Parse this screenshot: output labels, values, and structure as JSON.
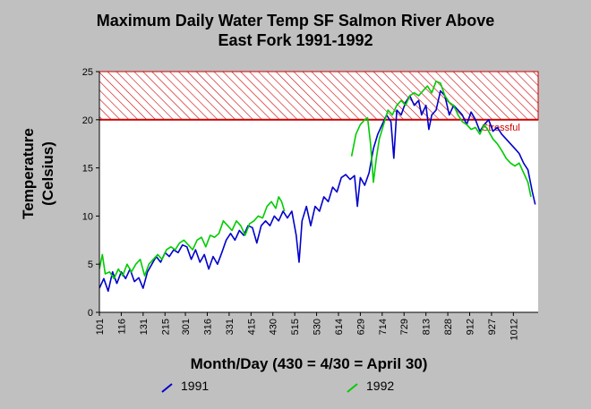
{
  "chart_data": {
    "type": "line",
    "title_line1": "Maximum Daily Water Temp SF Salmon River Above",
    "title_line2": "East Fork 1991-1992",
    "xlabel": "Month/Day (430 = 4/30 = April 30)",
    "ylabel_line1": "Temperature",
    "ylabel_line2": "(Celsius)",
    "ylim": [
      0,
      25
    ],
    "yticks": [
      0,
      5,
      10,
      15,
      20,
      25
    ],
    "x_tick_labels": [
      "101",
      "116",
      "131",
      "215",
      "301",
      "316",
      "331",
      "415",
      "430",
      "515",
      "530",
      "614",
      "629",
      "714",
      "729",
      "813",
      "828",
      "912",
      "927",
      "1012"
    ],
    "x_tick_days": [
      1,
      16,
      31,
      46,
      60,
      75,
      90,
      105,
      120,
      135,
      150,
      165,
      180,
      195,
      210,
      225,
      240,
      255,
      270,
      285
    ],
    "xlim": [
      1,
      302
    ],
    "threshold": {
      "label": "Stressful",
      "from": 20,
      "to": 25,
      "color": "#cc0000"
    },
    "series": [
      {
        "name": "1991",
        "color": "#0000cc",
        "points": [
          [
            1,
            2.5
          ],
          [
            4,
            3.5
          ],
          [
            7,
            2.2
          ],
          [
            10,
            4.2
          ],
          [
            13,
            3
          ],
          [
            16,
            4.2
          ],
          [
            19,
            3.5
          ],
          [
            22,
            4.5
          ],
          [
            25,
            3.2
          ],
          [
            28,
            3.6
          ],
          [
            31,
            2.5
          ],
          [
            34,
            4.2
          ],
          [
            37,
            5
          ],
          [
            40,
            5.8
          ],
          [
            43,
            5.2
          ],
          [
            46,
            6.2
          ],
          [
            49,
            5.8
          ],
          [
            52,
            6.5
          ],
          [
            55,
            6.2
          ],
          [
            58,
            7
          ],
          [
            61,
            6.8
          ],
          [
            64,
            5.5
          ],
          [
            67,
            6.5
          ],
          [
            70,
            5.2
          ],
          [
            73,
            6
          ],
          [
            76,
            4.5
          ],
          [
            79,
            5.8
          ],
          [
            82,
            5
          ],
          [
            85,
            6.2
          ],
          [
            88,
            7.5
          ],
          [
            91,
            8.2
          ],
          [
            94,
            7.5
          ],
          [
            97,
            8.5
          ],
          [
            100,
            8
          ],
          [
            103,
            9
          ],
          [
            106,
            8.8
          ],
          [
            109,
            7.2
          ],
          [
            112,
            9
          ],
          [
            115,
            9.5
          ],
          [
            118,
            9
          ],
          [
            121,
            10
          ],
          [
            124,
            9.5
          ],
          [
            127,
            10.5
          ],
          [
            130,
            9.8
          ],
          [
            133,
            10.5
          ],
          [
            136,
            8
          ],
          [
            138,
            5.2
          ],
          [
            140,
            9.5
          ],
          [
            143,
            11
          ],
          [
            146,
            9
          ],
          [
            149,
            11
          ],
          [
            152,
            10.5
          ],
          [
            155,
            12
          ],
          [
            158,
            11.5
          ],
          [
            161,
            13
          ],
          [
            164,
            12.5
          ],
          [
            167,
            14
          ],
          [
            170,
            14.3
          ],
          [
            173,
            13.8
          ],
          [
            176,
            14.2
          ],
          [
            178,
            11
          ],
          [
            180,
            14
          ],
          [
            183,
            13.2
          ],
          [
            186,
            14.5
          ],
          [
            189,
            17
          ],
          [
            192,
            18.5
          ],
          [
            195,
            19.5
          ],
          [
            198,
            20.5
          ],
          [
            201,
            19.8
          ],
          [
            203,
            16
          ],
          [
            205,
            21
          ],
          [
            208,
            20.5
          ],
          [
            211,
            21.8
          ],
          [
            214,
            22.5
          ],
          [
            217,
            21.5
          ],
          [
            220,
            22
          ],
          [
            222,
            20.5
          ],
          [
            225,
            21.5
          ],
          [
            227,
            19
          ],
          [
            229,
            20.5
          ],
          [
            232,
            21
          ],
          [
            235,
            23
          ],
          [
            238,
            22.5
          ],
          [
            241,
            20.5
          ],
          [
            244,
            21.5
          ],
          [
            247,
            21
          ],
          [
            250,
            20.5
          ],
          [
            253,
            19.5
          ],
          [
            256,
            20.8
          ],
          [
            259,
            20
          ],
          [
            262,
            18.8
          ],
          [
            265,
            19.5
          ],
          [
            268,
            20
          ],
          [
            271,
            18.8
          ],
          [
            274,
            19.2
          ],
          [
            277,
            18.5
          ],
          [
            280,
            18
          ],
          [
            283,
            17.5
          ],
          [
            286,
            17
          ],
          [
            289,
            16.5
          ],
          [
            292,
            15.5
          ],
          [
            295,
            14.8
          ],
          [
            298,
            12.5
          ],
          [
            300,
            11.2
          ]
        ]
      },
      {
        "name": "1992",
        "color": "#00cc00",
        "points": [
          [
            1,
            4.5
          ],
          [
            3,
            6
          ],
          [
            5,
            4
          ],
          [
            8,
            4.2
          ],
          [
            11,
            3.5
          ],
          [
            14,
            4.5
          ],
          [
            17,
            3.8
          ],
          [
            20,
            5
          ],
          [
            23,
            4.2
          ],
          [
            26,
            5
          ],
          [
            29,
            5.5
          ],
          [
            32,
            3.8
          ],
          [
            35,
            5
          ],
          [
            38,
            5.5
          ],
          [
            41,
            6
          ],
          [
            44,
            5.5
          ],
          [
            47,
            6.5
          ],
          [
            50,
            6.8
          ],
          [
            53,
            6.5
          ],
          [
            56,
            7.2
          ],
          [
            59,
            7.5
          ],
          [
            62,
            7
          ],
          [
            65,
            6.5
          ],
          [
            68,
            7.5
          ],
          [
            71,
            7.8
          ],
          [
            74,
            6.8
          ],
          [
            77,
            8
          ],
          [
            80,
            7.8
          ],
          [
            83,
            8.2
          ],
          [
            86,
            9.5
          ],
          [
            89,
            9
          ],
          [
            92,
            8.5
          ],
          [
            95,
            9.5
          ],
          [
            98,
            9
          ],
          [
            101,
            8
          ],
          [
            104,
            9.2
          ],
          [
            107,
            9.5
          ],
          [
            110,
            10
          ],
          [
            113,
            9.8
          ],
          [
            116,
            11
          ],
          [
            119,
            11.5
          ],
          [
            122,
            10.8
          ],
          [
            124,
            12
          ],
          [
            126,
            11.5
          ],
          [
            128,
            10.5
          ],
          [
            174,
            16.2
          ],
          [
            177,
            18.5
          ],
          [
            180,
            19.5
          ],
          [
            183,
            20
          ],
          [
            185,
            20.2
          ],
          [
            187,
            17.5
          ],
          [
            189,
            13.5
          ],
          [
            191,
            16
          ],
          [
            193,
            18
          ],
          [
            196,
            19.5
          ],
          [
            199,
            21
          ],
          [
            202,
            20.5
          ],
          [
            205,
            21.5
          ],
          [
            208,
            22
          ],
          [
            211,
            21.5
          ],
          [
            214,
            22.5
          ],
          [
            217,
            22.8
          ],
          [
            220,
            22.5
          ],
          [
            223,
            23
          ],
          [
            226,
            23.5
          ],
          [
            229,
            22.8
          ],
          [
            232,
            24
          ],
          [
            235,
            23.8
          ],
          [
            238,
            22.5
          ],
          [
            241,
            21.8
          ],
          [
            244,
            21.5
          ],
          [
            247,
            20.5
          ],
          [
            250,
            19.8
          ],
          [
            253,
            19.5
          ],
          [
            256,
            19
          ],
          [
            259,
            19.2
          ],
          [
            262,
            18.5
          ],
          [
            265,
            19.5
          ],
          [
            268,
            18.8
          ],
          [
            271,
            18
          ],
          [
            274,
            17.5
          ],
          [
            277,
            16.8
          ],
          [
            280,
            16
          ],
          [
            283,
            15.5
          ],
          [
            286,
            15.2
          ],
          [
            289,
            15.5
          ],
          [
            292,
            14.5
          ],
          [
            295,
            13.5
          ],
          [
            297,
            12
          ]
        ]
      }
    ]
  }
}
